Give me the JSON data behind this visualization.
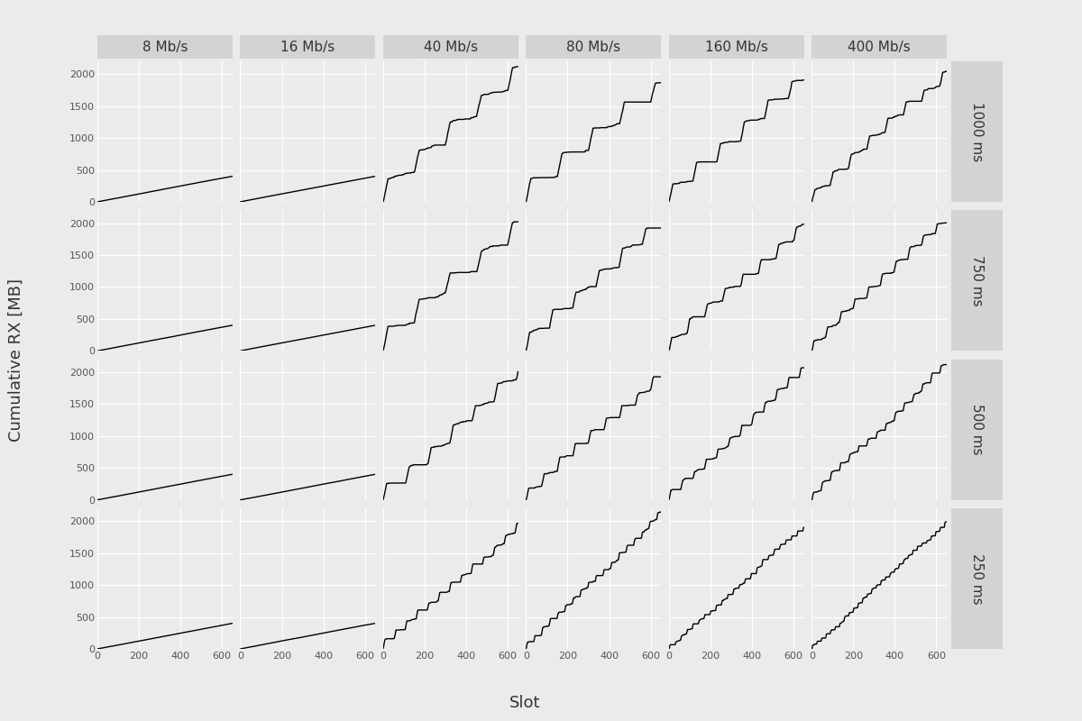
{
  "col_labels": [
    "8 Mb/s",
    "16 Mb/s",
    "40 Mb/s",
    "80 Mb/s",
    "160 Mb/s",
    "400 Mb/s"
  ],
  "row_labels": [
    "1000 ms",
    "750 ms",
    "500 ms",
    "250 ms"
  ],
  "x_label": "Slot",
  "y_label": "Cumulative RX [MB]",
  "x_max": 650,
  "y_max": 2000,
  "x_ticks": [
    0,
    200,
    400,
    600
  ],
  "y_ticks": [
    0,
    500,
    1000,
    1500,
    2000
  ],
  "background_color": "#EBEBEB",
  "panel_bg": "#EBEBEB",
  "strip_bg": "#D3D3D3",
  "line_color": "#000000",
  "line_width": 1.0,
  "bandwidths_mbps": [
    8,
    16,
    40,
    80,
    160,
    400
  ],
  "latencies_ms": [
    1000,
    750,
    500,
    250
  ],
  "grid_color": "#FFFFFF",
  "tick_color": "#555555",
  "label_fontsize": 11,
  "tick_fontsize": 8,
  "axis_label_fontsize": 13
}
